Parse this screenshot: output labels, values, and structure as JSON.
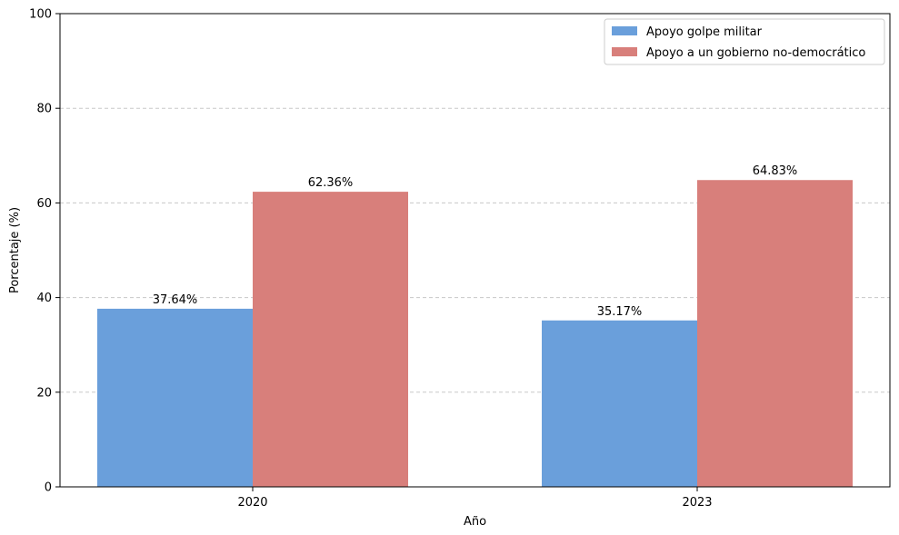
{
  "chart_data": {
    "type": "bar",
    "title": "",
    "xlabel": "Año",
    "ylabel": "Porcentaje (%)",
    "categories": [
      "2020",
      "2023"
    ],
    "series": [
      {
        "name": "Apoyo golpe militar",
        "color": "#6a9fdb",
        "values": [
          37.64,
          35.17
        ],
        "labels": [
          "37.64%",
          "35.17%"
        ]
      },
      {
        "name": "Apoyo a un gobierno no-democrático",
        "color": "#d87f7b",
        "values": [
          62.36,
          64.83
        ],
        "labels": [
          "62.36%",
          "64.83%"
        ]
      }
    ],
    "ylim": [
      0,
      100
    ],
    "yticks": [
      0,
      20,
      40,
      60,
      80,
      100
    ],
    "grid": "y-dashed",
    "legend_position": "top-right"
  }
}
